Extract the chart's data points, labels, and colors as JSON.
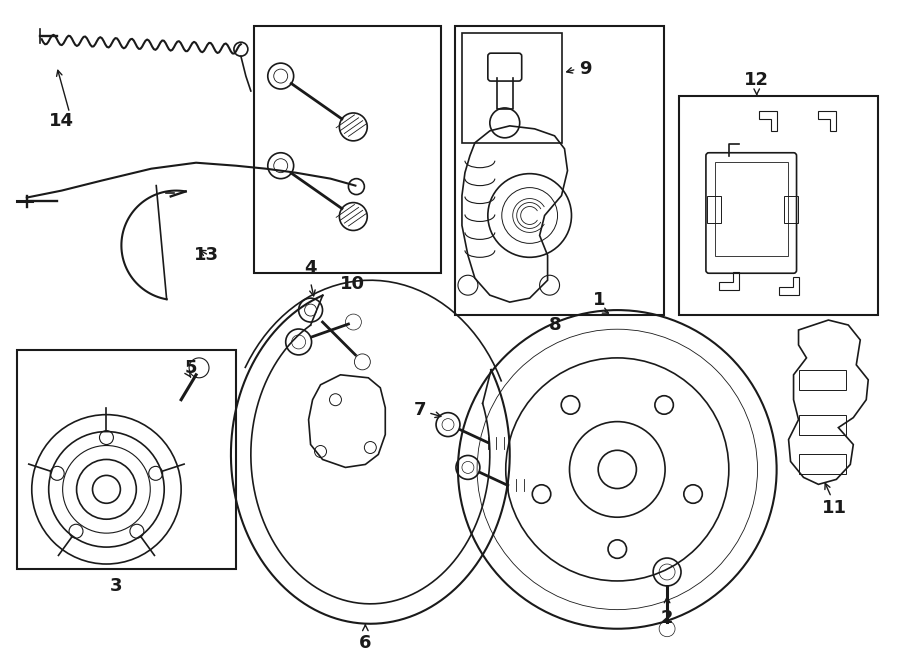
{
  "bg_color": "#ffffff",
  "line_color": "#1a1a1a",
  "figsize": [
    9.0,
    6.62
  ],
  "dpi": 100,
  "lw": 1.2,
  "label_fs": 13
}
